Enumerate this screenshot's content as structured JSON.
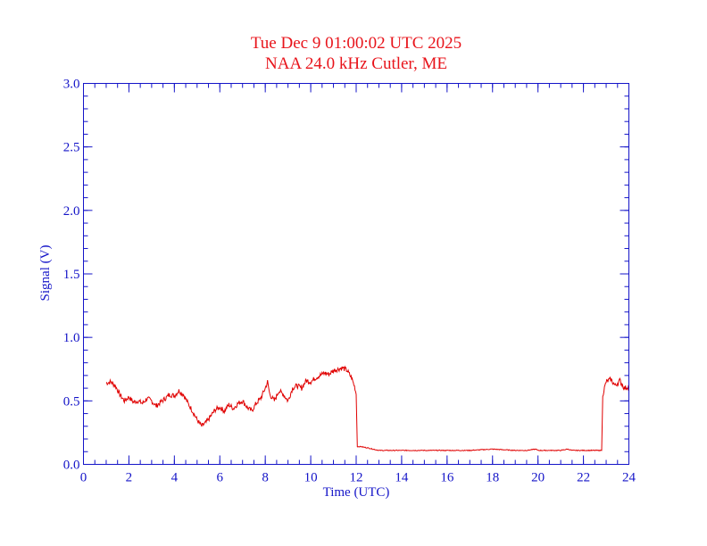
{
  "chart_data": {
    "type": "line",
    "title": "Tue Dec 9 01:00:02 UTC 2025",
    "subtitle": "NAA 24.0 kHz Cutler, ME",
    "xlabel": "Time (UTC)",
    "ylabel": "Signal (V)",
    "xlim": [
      0,
      24
    ],
    "ylim": [
      0,
      3.0
    ],
    "x_ticks": [
      0,
      2,
      4,
      6,
      8,
      10,
      12,
      14,
      16,
      18,
      20,
      22,
      24
    ],
    "x_tick_labels": [
      "0",
      "2",
      "4",
      "6",
      "8",
      "10",
      "12",
      "14",
      "16",
      "18",
      "20",
      "22",
      "24"
    ],
    "y_ticks": [
      0,
      0.5,
      1.0,
      1.5,
      2.0,
      2.5,
      3.0
    ],
    "y_tick_labels": [
      "0.0",
      "0.5",
      "1.0",
      "1.5",
      "2.0",
      "2.5",
      "3.0"
    ],
    "x_minor_step": 0.5,
    "y_minor_step": 0.1,
    "grid": false,
    "colors": {
      "axes": "#1414c8",
      "title": "#e8141b",
      "series": "#e00000"
    },
    "series": [
      {
        "x": [
          1.0,
          1.2,
          1.4,
          1.6,
          1.8,
          2.0,
          2.2,
          2.4,
          2.6,
          2.8,
          3.0,
          3.2,
          3.4,
          3.6,
          3.8,
          4.0,
          4.2,
          4.4,
          4.6,
          4.8,
          5.0,
          5.2,
          5.4,
          5.6,
          5.8,
          6.0,
          6.2,
          6.4,
          6.6,
          6.8,
          7.0,
          7.2,
          7.4,
          7.6,
          7.8,
          8.0,
          8.1,
          8.2,
          8.4,
          8.6,
          8.8,
          9.0,
          9.2,
          9.4,
          9.6,
          9.8,
          10.0,
          10.2,
          10.4,
          10.6,
          10.8,
          11.0,
          11.2,
          11.4,
          11.6,
          11.8,
          11.95,
          12.0,
          12.05,
          12.2,
          12.5,
          13.0,
          14.0,
          15.0,
          16.0,
          17.0,
          18.0,
          19.0,
          19.5,
          19.9,
          20.0,
          20.5,
          21.0,
          21.3,
          21.5,
          22.0,
          22.5,
          22.8,
          22.85,
          23.0,
          23.2,
          23.4,
          23.6,
          23.8,
          24.0
        ],
        "y": [
          0.64,
          0.65,
          0.62,
          0.55,
          0.5,
          0.53,
          0.49,
          0.5,
          0.48,
          0.52,
          0.5,
          0.46,
          0.49,
          0.52,
          0.55,
          0.54,
          0.58,
          0.55,
          0.48,
          0.42,
          0.35,
          0.3,
          0.33,
          0.38,
          0.43,
          0.45,
          0.42,
          0.47,
          0.44,
          0.48,
          0.5,
          0.45,
          0.42,
          0.48,
          0.52,
          0.6,
          0.65,
          0.55,
          0.5,
          0.58,
          0.55,
          0.5,
          0.6,
          0.62,
          0.6,
          0.66,
          0.65,
          0.68,
          0.7,
          0.72,
          0.71,
          0.74,
          0.75,
          0.76,
          0.74,
          0.68,
          0.6,
          0.55,
          0.14,
          0.14,
          0.13,
          0.11,
          0.11,
          0.11,
          0.11,
          0.11,
          0.12,
          0.11,
          0.11,
          0.12,
          0.11,
          0.11,
          0.11,
          0.12,
          0.11,
          0.11,
          0.11,
          0.11,
          0.55,
          0.65,
          0.67,
          0.62,
          0.66,
          0.6,
          0.61
        ]
      }
    ]
  }
}
